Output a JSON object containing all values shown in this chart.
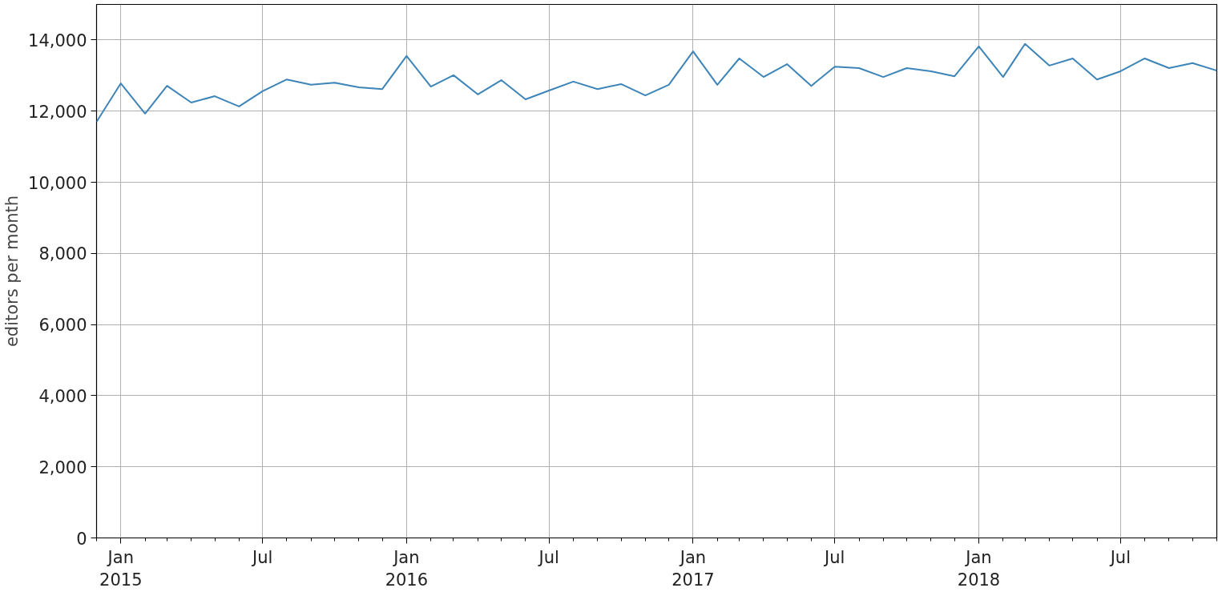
{
  "chart_data": {
    "type": "line",
    "ylabel": "editors per month",
    "x": [
      "2014-12",
      "2015-01",
      "2015-02",
      "2015-03",
      "2015-04",
      "2015-05",
      "2015-06",
      "2015-07",
      "2015-08",
      "2015-09",
      "2015-10",
      "2015-11",
      "2015-12",
      "2016-01",
      "2016-02",
      "2016-03",
      "2016-04",
      "2016-05",
      "2016-06",
      "2016-07",
      "2016-08",
      "2016-09",
      "2016-10",
      "2016-11",
      "2016-12",
      "2017-01",
      "2017-02",
      "2017-03",
      "2017-04",
      "2017-05",
      "2017-06",
      "2017-07",
      "2017-08",
      "2017-09",
      "2017-10",
      "2017-11",
      "2017-12",
      "2018-01",
      "2018-02",
      "2018-03",
      "2018-04",
      "2018-05",
      "2018-06",
      "2018-07",
      "2018-08",
      "2018-09",
      "2018-10",
      "2018-11"
    ],
    "series": [
      {
        "color": "#3d85b8",
        "values": [
          11700,
          12780,
          11930,
          12710,
          12240,
          12420,
          12130,
          12560,
          12890,
          12740,
          12800,
          12670,
          12620,
          13550,
          12690,
          13010,
          12470,
          12870,
          12330,
          12580,
          12830,
          12620,
          12760,
          12440,
          12740,
          13680,
          12740,
          13480,
          12960,
          13320,
          12710,
          13250,
          13210,
          12960,
          13210,
          13120,
          12980,
          13820,
          12960,
          13890,
          13280,
          13480,
          12890,
          13120,
          13480,
          13210,
          13350,
          13140
        ]
      }
    ],
    "xlim": [
      "2014-12",
      "2018-11"
    ],
    "xticks": [
      {
        "value": "2015-01",
        "label": "Jan\n2015"
      },
      {
        "value": "2015-07",
        "label": "Jul"
      },
      {
        "value": "2016-01",
        "label": "Jan\n2016"
      },
      {
        "value": "2016-07",
        "label": "Jul"
      },
      {
        "value": "2017-01",
        "label": "Jan\n2017"
      },
      {
        "value": "2017-07",
        "label": "Jul"
      },
      {
        "value": "2018-01",
        "label": "Jan\n2018"
      },
      {
        "value": "2018-07",
        "label": "Jul"
      }
    ],
    "ylim": [
      0,
      15000
    ],
    "yticks": [
      {
        "value": 0,
        "label": "0"
      },
      {
        "value": 2000,
        "label": "2,000"
      },
      {
        "value": 4000,
        "label": "4,000"
      },
      {
        "value": 6000,
        "label": "6,000"
      },
      {
        "value": 8000,
        "label": "8,000"
      },
      {
        "value": 10000,
        "label": "10,000"
      },
      {
        "value": 12000,
        "label": "12,000"
      },
      {
        "value": 14000,
        "label": "14,000"
      }
    ],
    "grid": true,
    "line_style": "solid"
  }
}
